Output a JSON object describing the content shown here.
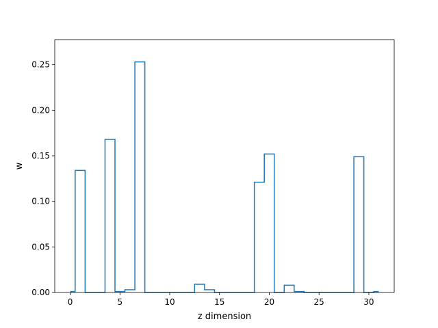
{
  "chart_data": {
    "type": "step",
    "title": "",
    "xlabel": "z dimension",
    "ylabel": "w",
    "xlim": [
      -1.55,
      32.55
    ],
    "ylim": [
      0,
      0.2775
    ],
    "xticks": [
      0,
      5,
      10,
      15,
      20,
      25,
      30
    ],
    "yticks": [
      0.0,
      0.05,
      0.1,
      0.15,
      0.2,
      0.25
    ],
    "ytick_labels": [
      "0.00",
      "0.05",
      "0.10",
      "0.15",
      "0.20",
      "0.25"
    ],
    "grid": false,
    "line_color": "#1f77b4",
    "x": [
      0,
      1,
      2,
      3,
      4,
      5,
      6,
      7,
      8,
      9,
      10,
      11,
      12,
      13,
      14,
      15,
      16,
      17,
      18,
      19,
      20,
      21,
      22,
      23,
      24,
      25,
      26,
      27,
      28,
      29,
      30,
      31
    ],
    "values": [
      0.001,
      0.134,
      0,
      0,
      0.168,
      0.001,
      0.003,
      0.253,
      0,
      0,
      0,
      0,
      0,
      0.009,
      0.003,
      0,
      0,
      0,
      0,
      0.121,
      0.152,
      0,
      0.008,
      0.001,
      0,
      0,
      0,
      0,
      0,
      0.149,
      0,
      0.001
    ]
  }
}
